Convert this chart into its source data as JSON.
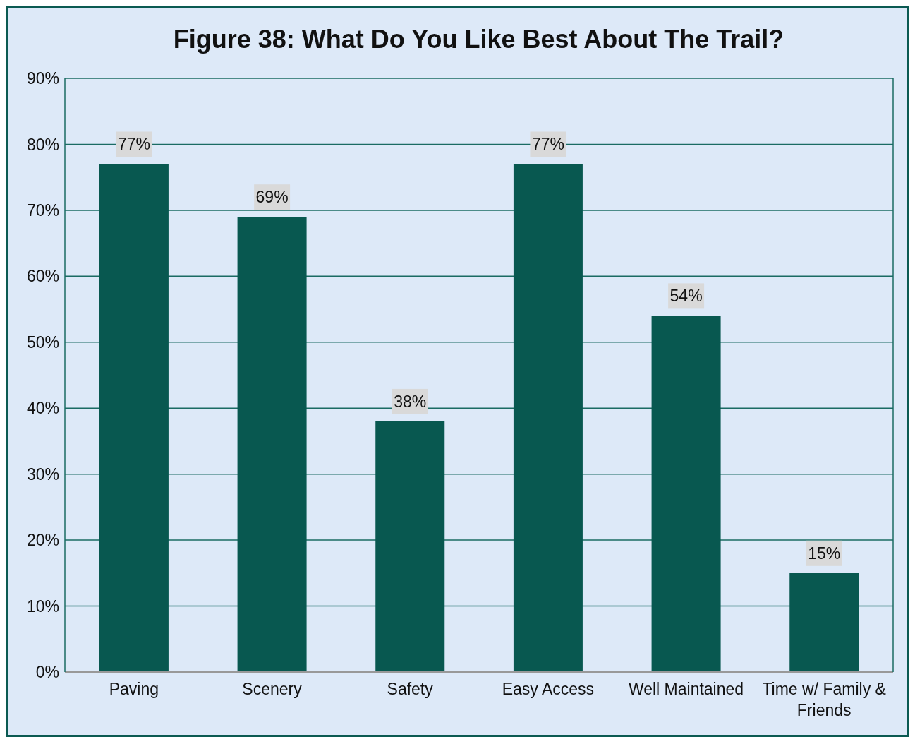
{
  "chart_data": {
    "type": "bar",
    "title": "Figure 38: What Do You Like Best About The Trail?",
    "categories": [
      "Paving",
      "Scenery",
      "Safety",
      "Easy Access",
      "Well Maintained",
      "Time w/ Family & Friends"
    ],
    "values": [
      77,
      69,
      38,
      77,
      54,
      15
    ],
    "value_labels": [
      "77%",
      "69%",
      "38%",
      "77%",
      "54%",
      "15%"
    ],
    "color": "#085850",
    "ylim": [
      0,
      90
    ],
    "yticks": [
      {
        "value": 0,
        "label": "0%"
      },
      {
        "value": 10,
        "label": "10%"
      },
      {
        "value": 20,
        "label": "20%"
      },
      {
        "value": 30,
        "label": "30%"
      },
      {
        "value": 40,
        "label": "40%"
      },
      {
        "value": 50,
        "label": "50%"
      },
      {
        "value": 60,
        "label": "60%"
      },
      {
        "value": 70,
        "label": "70%"
      },
      {
        "value": 80,
        "label": "80%"
      },
      {
        "value": 90,
        "label": "90%"
      }
    ],
    "grid": "y"
  }
}
